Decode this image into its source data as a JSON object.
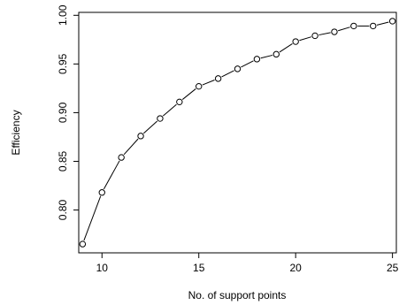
{
  "chart_data": {
    "type": "scatter",
    "line": true,
    "marker": "open-circle",
    "xlabel": "No. of support points",
    "ylabel": "Efficiency",
    "xlim": [
      8.8,
      25.2
    ],
    "ylim": [
      0.756,
      1.003
    ],
    "xticks": [
      10,
      15,
      20,
      25
    ],
    "xtick_labels": [
      "10",
      "15",
      "20",
      "25"
    ],
    "yticks": [
      0.8,
      0.85,
      0.9,
      0.95,
      1.0
    ],
    "ytick_labels": [
      "0.80",
      "0.85",
      "0.90",
      "0.95",
      "1.00"
    ],
    "grid": false,
    "series": [
      {
        "x": [
          9,
          10,
          11,
          12,
          13,
          14,
          15,
          16,
          17,
          18,
          19,
          20,
          21,
          22,
          23,
          24,
          25
        ],
        "y": [
          0.765,
          0.818,
          0.854,
          0.876,
          0.894,
          0.911,
          0.927,
          0.935,
          0.945,
          0.955,
          0.96,
          0.973,
          0.979,
          0.983,
          0.989,
          0.989,
          0.994
        ]
      }
    ]
  }
}
